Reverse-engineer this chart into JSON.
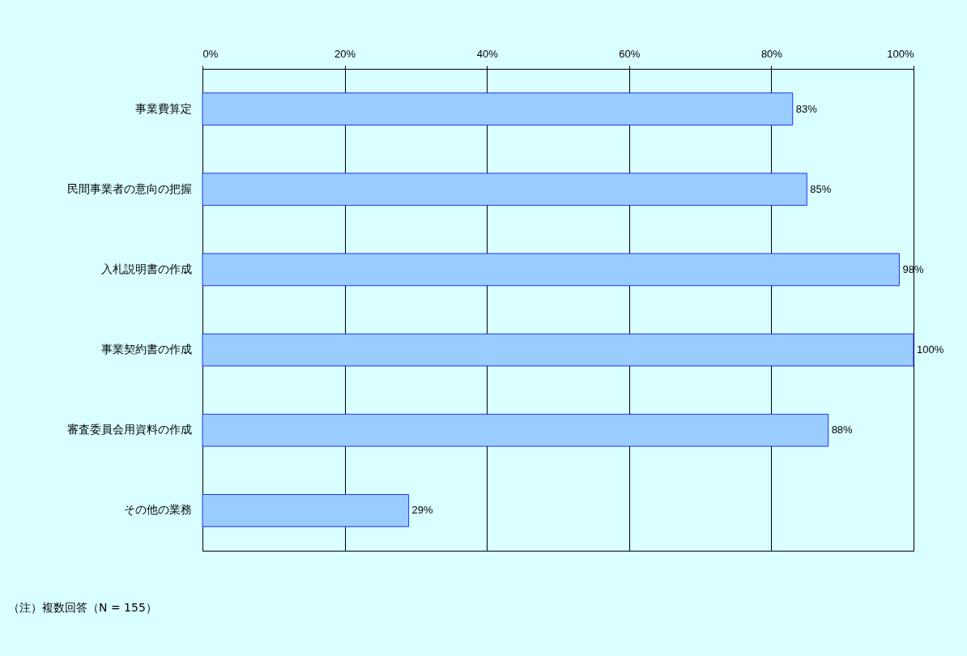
{
  "chart_data": {
    "type": "bar",
    "orientation": "horizontal",
    "categories": [
      "事業費算定",
      "民間事業者の意向の把握",
      "入札説明書の作成",
      "事業契約書の作成",
      "審査委員会用資料の作成",
      "その他の業務"
    ],
    "values": [
      83,
      85,
      98,
      100,
      88,
      29
    ],
    "value_labels": [
      "83%",
      "85%",
      "98%",
      "100%",
      "88%",
      "29%"
    ],
    "color": "#99ccff",
    "xlim": [
      0,
      100
    ],
    "xticks": [
      {
        "value": 0,
        "label": "0%"
      },
      {
        "value": 20,
        "label": "20%"
      },
      {
        "value": 40,
        "label": "40%"
      },
      {
        "value": 60,
        "label": "60%"
      },
      {
        "value": 80,
        "label": "80%"
      },
      {
        "value": 100,
        "label": "100%"
      }
    ],
    "grid": "x",
    "annotations": [
      "（注）複数回答（N = 155）"
    ]
  }
}
